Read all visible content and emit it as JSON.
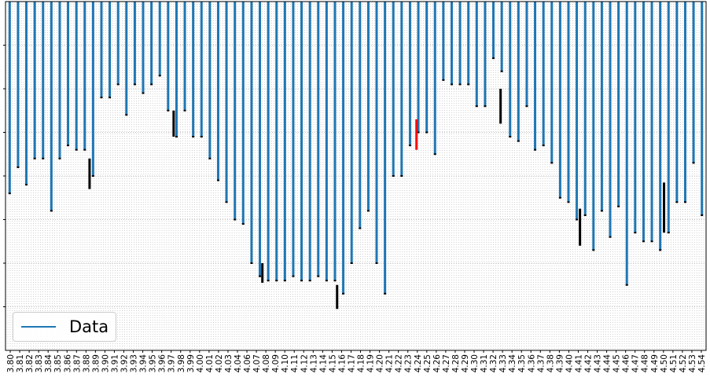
{
  "chart_data": {
    "type": "line",
    "title": "",
    "xlabel": "",
    "ylabel": "",
    "grid": true,
    "legend_placement": "lower-left",
    "series_color": "#1f77b4",
    "marker_color": "#000000",
    "highlight_color": "#ff0000",
    "x_ticks": [
      "3.80",
      "3.81",
      "3.82",
      "3.83",
      "3.84",
      "3.85",
      "3.86",
      "3.87",
      "3.88",
      "3.89",
      "3.90",
      "3.91",
      "3.92",
      "3.93",
      "3.94",
      "3.95",
      "3.96",
      "3.97",
      "3.98",
      "3.99",
      "4.00",
      "4.01",
      "4.02",
      "4.03",
      "4.04",
      "4.06",
      "4.07",
      "4.08",
      "4.09",
      "4.10",
      "4.11",
      "4.12",
      "4.13",
      "4.14",
      "4.15",
      "4.16",
      "4.17",
      "4.18",
      "4.19",
      "4.20",
      "4.21",
      "4.22",
      "4.23",
      "4.24",
      "4.25",
      "4.26",
      "4.27",
      "4.28",
      "4.29",
      "4.30",
      "4.31",
      "4.32",
      "4.33",
      "4.34",
      "4.35",
      "4.36",
      "4.37",
      "4.38",
      "4.39",
      "4.40",
      "4.41",
      "4.42",
      "4.43",
      "4.44",
      "4.45",
      "4.46",
      "4.47",
      "4.48",
      "4.49",
      "4.50",
      "4.51",
      "4.52",
      "4.53",
      "4.54"
    ],
    "xlim": [
      3.8,
      4.55
    ],
    "ylim": [
      0,
      8
    ],
    "series": [
      {
        "name": "Data",
        "low_values": [
          3.6,
          4.2,
          3.8,
          4.4,
          4.4,
          3.2,
          4.4,
          4.7,
          4.6,
          4.6,
          4.0,
          5.8,
          5.8,
          6.1,
          5.4,
          6.1,
          5.9,
          6.1,
          6.3,
          5.5,
          4.9,
          5.5,
          4.9,
          4.9,
          4.4,
          3.9,
          3.4,
          3.0,
          2.9,
          2.0,
          1.7,
          1.6,
          1.6,
          1.6,
          1.7,
          1.6,
          1.6,
          1.7,
          1.6,
          1.6,
          1.3,
          2.0,
          2.8,
          3.2,
          2.0,
          1.3,
          4.0,
          4.0,
          4.7,
          5.0,
          5.0,
          4.5,
          6.2,
          6.1,
          6.1,
          6.1,
          5.6,
          5.6,
          6.7,
          6.4,
          4.9,
          4.8,
          5.6,
          4.6,
          4.7,
          4.3,
          3.5,
          3.4,
          3.0,
          3.1,
          2.3,
          3.2,
          2.6,
          3.3,
          1.5,
          2.7,
          2.5,
          2.5,
          2.3,
          2.7,
          3.4,
          3.4,
          4.3,
          3.1
        ],
        "high_values": [
          8,
          8,
          8,
          8,
          8,
          8,
          8,
          8,
          8,
          8,
          8,
          8,
          8,
          8,
          8,
          8,
          8,
          8,
          8,
          8,
          8,
          8,
          8,
          8,
          8,
          8,
          8,
          8,
          8,
          8,
          8,
          8,
          8,
          8,
          8,
          8,
          8,
          8,
          8,
          8,
          8,
          8,
          8,
          8,
          8,
          8,
          8,
          8,
          8,
          8,
          8,
          8,
          8,
          8,
          8,
          8,
          8,
          8,
          8,
          8,
          8,
          8,
          8,
          8,
          8,
          8,
          8,
          8,
          8,
          8,
          8,
          8,
          8,
          8,
          8,
          8,
          8,
          8,
          8,
          8,
          8,
          8,
          8,
          8
        ]
      }
    ],
    "black_markers": [
      {
        "x": 3.89,
        "y_top": 4.4,
        "y_bottom": 3.7
      },
      {
        "x": 3.98,
        "y_top": 5.5,
        "y_bottom": 4.9
      },
      {
        "x": 4.075,
        "y_top": 2.0,
        "y_bottom": 1.55
      },
      {
        "x": 4.155,
        "y_top": 1.5,
        "y_bottom": 0.95
      },
      {
        "x": 4.33,
        "y_top": 6.0,
        "y_bottom": 5.2
      },
      {
        "x": 4.415,
        "y_top": 3.25,
        "y_bottom": 2.4
      },
      {
        "x": 4.505,
        "y_top": 3.85,
        "y_bottom": 2.7
      }
    ],
    "red_marker": {
      "x": 4.24,
      "y_top": 5.3,
      "y_bottom": 4.6
    },
    "legend": [
      "Data"
    ]
  }
}
